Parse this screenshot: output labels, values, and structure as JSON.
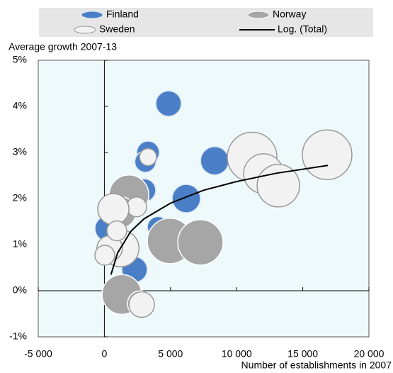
{
  "chart_data": {
    "type": "bubble",
    "ylabel": "Average growth 2007-13",
    "xlabel": "Number of establishments in 2007",
    "xlim": [
      -5000,
      20000
    ],
    "xticks": [
      {
        "value": -5000,
        "label": "-5 000"
      },
      0,
      {
        "value": 5000,
        "label": "5 000"
      },
      {
        "value": 10000,
        "label": "10 000"
      },
      {
        "value": 15000,
        "label": "15 000"
      },
      {
        "value": 20000,
        "label": "20 000"
      }
    ],
    "ylim": [
      -1,
      5
    ],
    "yticks": [
      {
        "value": -1,
        "label": "-1%"
      },
      {
        "value": 0,
        "label": "0%"
      },
      {
        "value": 1,
        "label": "1%"
      },
      {
        "value": 2,
        "label": "2%"
      },
      {
        "value": 3,
        "label": "3%"
      },
      {
        "value": 4,
        "label": "4%"
      },
      {
        "value": 5,
        "label": "5%"
      }
    ],
    "series": [
      {
        "name": "Finland",
        "color": "#4a7fc8",
        "stroke": "#dde8f5",
        "x": [
          4850,
          3300,
          3100,
          8340,
          6190,
          3030,
          250,
          4050,
          2280
        ],
        "values": [
          4.06,
          3.0,
          2.8,
          2.82,
          2.0,
          2.18,
          1.35,
          1.38,
          0.46
        ],
        "sizes": [
          81,
          64,
          56,
          100,
          100,
          64,
          81,
          56,
          81
        ]
      },
      {
        "name": "Norway",
        "color": "#a6a6a6",
        "stroke": "#ffffff",
        "x": [
          1860,
          4960,
          7260,
          1320,
          2710,
          1220,
          680
        ],
        "values": [
          2.08,
          1.08,
          1.05,
          -0.08,
          -0.28,
          1.7,
          0.85
        ],
        "sizes": [
          196,
          256,
          256,
          196,
          81,
          121,
          100
        ]
      },
      {
        "name": "Sweden",
        "color": "#f2f2f2",
        "stroke": "#999999",
        "x": [
          11170,
          12030,
          13150,
          16840,
          3300,
          2440,
          680,
          1220,
          400,
          30,
          2820,
          940
        ],
        "values": [
          2.9,
          2.54,
          2.28,
          2.95,
          2.9,
          1.82,
          1.77,
          0.92,
          0.92,
          0.77,
          -0.3,
          1.3
        ],
        "sizes": [
          306,
          196,
          225,
          306,
          36,
          49,
          121,
          169,
          81,
          49,
          81,
          49
        ]
      }
    ],
    "trendline": {
      "name": "Log. (Total)",
      "color": "#000000",
      "x": [
        500,
        1000,
        2000,
        3000,
        5000,
        7500,
        10000,
        13000,
        16900
      ],
      "values": [
        0.35,
        0.82,
        1.29,
        1.56,
        1.9,
        2.18,
        2.37,
        2.55,
        2.72
      ]
    }
  }
}
